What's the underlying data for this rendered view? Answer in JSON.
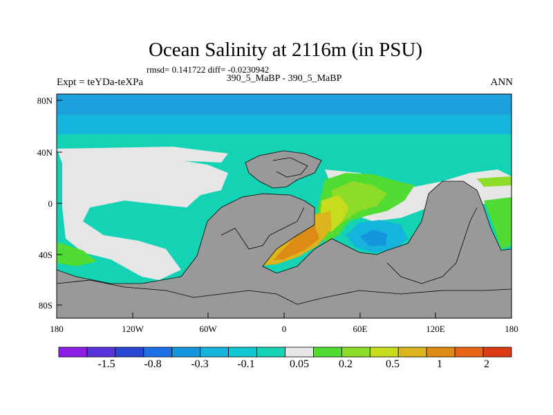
{
  "title": "Ocean Salinity at 2116m (in PSU)",
  "stats_line": "rmsd= 0.141722 diff= -0.0230942",
  "experiment": "Expt = teYDa-teXPa",
  "subtitle": "390_5_MaBP - 390_5_MaBP",
  "season": "ANN",
  "map": {
    "y_ticks": [
      "80N",
      "40N",
      "0",
      "40S",
      "80S"
    ],
    "x_ticks": [
      "180",
      "120W",
      "60W",
      "0",
      "60E",
      "120E",
      "180"
    ]
  },
  "colorbar": {
    "labels": [
      "-1.5",
      "-0.8",
      "-0.3",
      "-0.1",
      "0.05",
      "0.2",
      "0.5",
      "1",
      "2"
    ],
    "colors": [
      "#8c1ee6",
      "#5a32dc",
      "#2846d2",
      "#1e6ee6",
      "#1496dc",
      "#14b4dc",
      "#10c8d2",
      "#14d2b4",
      "#e6e6e6",
      "#50dc32",
      "#8cdc28",
      "#c8dc1e",
      "#dcb41e",
      "#dc8c14",
      "#e66414",
      "#dc3c14"
    ]
  },
  "palette": {
    "land": "#999999",
    "near_zero": "#e6e6e6",
    "teal": "#14d2b4",
    "cyan": "#14b4dc",
    "blue": "#1496dc",
    "arctic": "#1ea0dc"
  }
}
